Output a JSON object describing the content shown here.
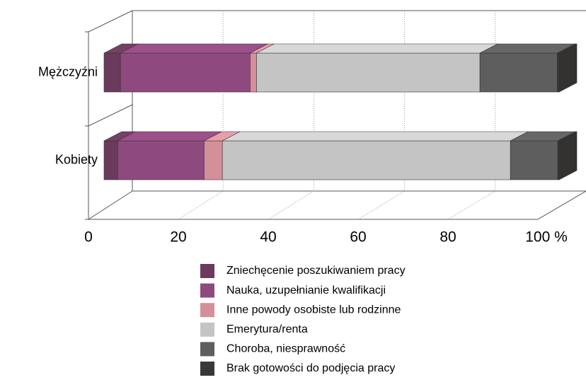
{
  "chart_data": {
    "type": "bar",
    "orientation": "horizontal",
    "stacked": true,
    "categories": [
      "Mężczyźni",
      "Kobiety"
    ],
    "series": [
      {
        "name": "Zniechęcenie poszukiwaniem pracy",
        "color": "#6b3a5c",
        "values": [
          3.6,
          3.0
        ]
      },
      {
        "name": "Nauka, uzupełnianie kwalifikacji",
        "color": "#8e4a7e",
        "values": [
          28.5,
          19.0
        ]
      },
      {
        "name": "Inne powody osobiste lub rodzinne",
        "color": "#d4909a",
        "values": [
          1.4,
          4.0
        ]
      },
      {
        "name": "Emerytura/renta",
        "color": "#c4c4c4",
        "values": [
          49.1,
          63.3
        ]
      },
      {
        "name": "Choroba, niesprawność",
        "color": "#5e5e5e",
        "values": [
          17.0,
          10.4
        ]
      },
      {
        "name": "Brak gotowości do podjęcia pracy",
        "color": "#3a3835",
        "values": [
          0.4,
          0.3
        ]
      }
    ],
    "xlim": [
      0,
      100
    ],
    "xticks": [
      0,
      20,
      40,
      60,
      80,
      {
        "value": 100,
        "label": "100 %"
      }
    ],
    "grid": true
  }
}
